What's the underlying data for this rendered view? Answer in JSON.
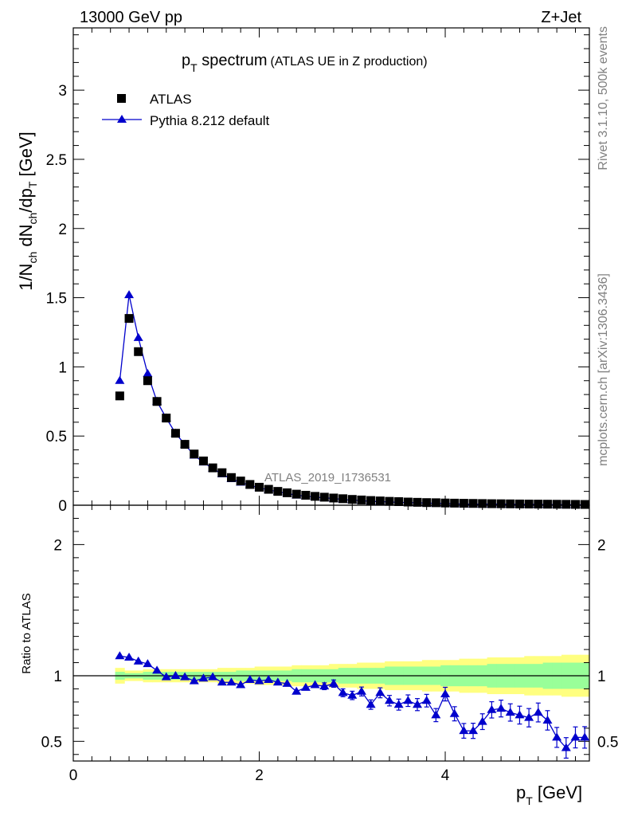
{
  "header": {
    "energy_label": "13000 GeV pp",
    "process_label": "Z+Jet"
  },
  "side_text": {
    "rivet_label": "Rivet 3.1.10,  500k events",
    "source_label": "mcplots.cern.ch [arXiv:1306.3436]"
  },
  "colors": {
    "mc": "#0000cc",
    "data": "#000000",
    "band_stat": "#99ff99",
    "band_total": "#ffff80",
    "watermark": "#808080"
  },
  "chart_data": [
    {
      "type": "scatter",
      "panel": "main",
      "title": {
        "main": "p",
        "sub": "T",
        "rest": " spectrum",
        "small": "(ATLAS UE in Z production)"
      },
      "analysis_label": "ATLAS_2019_I1736531",
      "ylabel": {
        "a": "1/N",
        "b": "ch",
        "c": " dN",
        "d": "ch",
        "e": "/dp",
        "f": "T",
        "g": " [GeV]"
      },
      "xlim": [
        0,
        5.55
      ],
      "ylim": [
        0,
        3.45
      ],
      "yticks": [
        {
          "v": 0,
          "label": "0"
        },
        {
          "v": 0.5,
          "label": "0.5"
        },
        {
          "v": 1,
          "label": "1"
        },
        {
          "v": 1.5,
          "label": "1.5"
        },
        {
          "v": 2,
          "label": "2"
        },
        {
          "v": 2.5,
          "label": "2.5"
        },
        {
          "v": 3,
          "label": "3"
        }
      ],
      "legend": [
        {
          "label": "ATLAS",
          "marker": "square"
        },
        {
          "label": "Pythia 8.212 default",
          "marker": "triangle"
        }
      ],
      "x": [
        0.5,
        0.6,
        0.7,
        0.8,
        0.9,
        1.0,
        1.1,
        1.2,
        1.3,
        1.4,
        1.5,
        1.6,
        1.7,
        1.8,
        1.9,
        2.0,
        2.1,
        2.2,
        2.3,
        2.4,
        2.5,
        2.6,
        2.7,
        2.8,
        2.9,
        3.0,
        3.1,
        3.2,
        3.3,
        3.4,
        3.5,
        3.6,
        3.7,
        3.8,
        3.9,
        4.0,
        4.1,
        4.2,
        4.3,
        4.4,
        4.5,
        4.6,
        4.7,
        4.8,
        4.9,
        5.0,
        5.1,
        5.2,
        5.3,
        5.4,
        5.5
      ],
      "series": [
        {
          "name": "ATLAS",
          "values": [
            0.79,
            1.35,
            1.11,
            0.9,
            0.75,
            0.63,
            0.52,
            0.44,
            0.37,
            0.32,
            0.27,
            0.235,
            0.2,
            0.175,
            0.15,
            0.13,
            0.115,
            0.1,
            0.09,
            0.08,
            0.072,
            0.064,
            0.058,
            0.052,
            0.047,
            0.042,
            0.038,
            0.034,
            0.031,
            0.028,
            0.026,
            0.023,
            0.021,
            0.019,
            0.018,
            0.016,
            0.015,
            0.014,
            0.013,
            0.012,
            0.011,
            0.0105,
            0.0098,
            0.009,
            0.0085,
            0.008,
            0.0075,
            0.007,
            0.0065,
            0.006,
            0.0056
          ]
        },
        {
          "name": "Pythia 8.212 default",
          "values": [
            0.9,
            1.52,
            1.21,
            0.95,
            0.75,
            0.63,
            0.52,
            0.44,
            0.36,
            0.31,
            0.265,
            0.225,
            0.19,
            0.165,
            0.145,
            0.126,
            0.111,
            0.097,
            0.086,
            0.071,
            0.066,
            0.059,
            0.053,
            0.049,
            0.041,
            0.036,
            0.034,
            0.027,
            0.027,
            0.023,
            0.021,
            0.019,
            0.017,
            0.016,
            0.013,
            0.014,
            0.011,
            0.0081,
            0.0075,
            0.0078,
            0.0082,
            0.0079,
            0.0071,
            0.0064,
            0.0061,
            0.0058,
            0.005,
            0.0042,
            0.0035,
            0.0027,
            0.003
          ]
        }
      ]
    },
    {
      "type": "scatter",
      "panel": "ratio",
      "ylabel": "Ratio to ATLAS",
      "xlabel": {
        "a": "p",
        "b": "T",
        "c": " [GeV]"
      },
      "xlim": [
        0,
        5.55
      ],
      "ylim": [
        0.35,
        2.3
      ],
      "reference_line": 1,
      "xticks": [
        {
          "v": 0,
          "label": "0"
        },
        {
          "v": 2,
          "label": "2"
        },
        {
          "v": 4,
          "label": "4"
        }
      ],
      "yticks": [
        {
          "v": 0.5,
          "label": "0.5"
        },
        {
          "v": 1,
          "label": "1"
        },
        {
          "v": 2,
          "label": "2"
        }
      ],
      "x": [
        0.5,
        0.6,
        0.7,
        0.8,
        0.9,
        1.0,
        1.1,
        1.2,
        1.3,
        1.4,
        1.5,
        1.6,
        1.7,
        1.8,
        1.9,
        2.0,
        2.1,
        2.2,
        2.3,
        2.4,
        2.5,
        2.6,
        2.7,
        2.8,
        2.9,
        3.0,
        3.1,
        3.2,
        3.3,
        3.4,
        3.5,
        3.6,
        3.7,
        3.8,
        3.9,
        4.0,
        4.1,
        4.2,
        4.3,
        4.4,
        4.5,
        4.6,
        4.7,
        4.8,
        4.9,
        5.0,
        5.1,
        5.2,
        5.3,
        5.4,
        5.5
      ],
      "series": [
        {
          "name": "Pythia 8.212 default",
          "values": [
            1.15,
            1.14,
            1.11,
            1.09,
            1.04,
            0.99,
            1.0,
            0.99,
            0.96,
            0.98,
            0.99,
            0.95,
            0.95,
            0.93,
            0.97,
            0.96,
            0.97,
            0.95,
            0.94,
            0.88,
            0.91,
            0.93,
            0.92,
            0.94,
            0.87,
            0.85,
            0.88,
            0.78,
            0.87,
            0.81,
            0.78,
            0.81,
            0.78,
            0.81,
            0.7,
            0.86,
            0.71,
            0.58,
            0.58,
            0.65,
            0.74,
            0.75,
            0.72,
            0.7,
            0.68,
            0.72,
            0.66,
            0.53,
            0.45,
            0.53,
            0.53
          ],
          "errors": [
            0.01,
            0.01,
            0.01,
            0.01,
            0.01,
            0.01,
            0.01,
            0.01,
            0.01,
            0.01,
            0.012,
            0.012,
            0.013,
            0.014,
            0.015,
            0.016,
            0.017,
            0.018,
            0.019,
            0.02,
            0.022,
            0.024,
            0.026,
            0.028,
            0.03,
            0.032,
            0.034,
            0.036,
            0.038,
            0.04,
            0.042,
            0.044,
            0.046,
            0.048,
            0.05,
            0.052,
            0.054,
            0.056,
            0.058,
            0.06,
            0.062,
            0.064,
            0.066,
            0.068,
            0.07,
            0.072,
            0.074,
            0.076,
            0.078,
            0.08,
            0.082
          ]
        },
        {
          "name": "ATLAS stat band",
          "lower": [
            0.97,
            0.98,
            0.98,
            0.97,
            0.97,
            0.97,
            0.97,
            0.97,
            0.97,
            0.97,
            0.97,
            0.97,
            0.97,
            0.96,
            0.96,
            0.96,
            0.96,
            0.96,
            0.96,
            0.95,
            0.95,
            0.95,
            0.95,
            0.95,
            0.94,
            0.94,
            0.94,
            0.94,
            0.94,
            0.93,
            0.93,
            0.93,
            0.93,
            0.93,
            0.93,
            0.92,
            0.92,
            0.92,
            0.92,
            0.92,
            0.91,
            0.91,
            0.91,
            0.91,
            0.91,
            0.91,
            0.9,
            0.9,
            0.9,
            0.9,
            0.9
          ],
          "upper": [
            1.03,
            1.02,
            1.02,
            1.03,
            1.03,
            1.03,
            1.03,
            1.03,
            1.03,
            1.03,
            1.03,
            1.03,
            1.03,
            1.04,
            1.04,
            1.04,
            1.04,
            1.04,
            1.04,
            1.05,
            1.05,
            1.05,
            1.05,
            1.05,
            1.06,
            1.06,
            1.06,
            1.06,
            1.06,
            1.07,
            1.07,
            1.07,
            1.07,
            1.07,
            1.07,
            1.08,
            1.08,
            1.08,
            1.08,
            1.08,
            1.09,
            1.09,
            1.09,
            1.09,
            1.09,
            1.09,
            1.1,
            1.1,
            1.1,
            1.1,
            1.1
          ]
        },
        {
          "name": "ATLAS total band",
          "lower": [
            0.94,
            0.96,
            0.96,
            0.95,
            0.95,
            0.95,
            0.95,
            0.95,
            0.95,
            0.95,
            0.95,
            0.94,
            0.94,
            0.94,
            0.94,
            0.93,
            0.93,
            0.93,
            0.93,
            0.92,
            0.92,
            0.92,
            0.92,
            0.91,
            0.91,
            0.91,
            0.9,
            0.9,
            0.9,
            0.89,
            0.89,
            0.89,
            0.89,
            0.88,
            0.88,
            0.88,
            0.88,
            0.87,
            0.87,
            0.87,
            0.86,
            0.86,
            0.86,
            0.86,
            0.85,
            0.85,
            0.85,
            0.85,
            0.84,
            0.84,
            0.84
          ],
          "upper": [
            1.06,
            1.04,
            1.04,
            1.05,
            1.05,
            1.05,
            1.05,
            1.05,
            1.05,
            1.05,
            1.05,
            1.06,
            1.06,
            1.06,
            1.06,
            1.07,
            1.07,
            1.07,
            1.07,
            1.08,
            1.08,
            1.08,
            1.08,
            1.09,
            1.09,
            1.09,
            1.1,
            1.1,
            1.1,
            1.11,
            1.11,
            1.11,
            1.11,
            1.12,
            1.12,
            1.12,
            1.12,
            1.13,
            1.13,
            1.13,
            1.14,
            1.14,
            1.14,
            1.14,
            1.15,
            1.15,
            1.15,
            1.15,
            1.16,
            1.16,
            1.16
          ]
        }
      ]
    }
  ]
}
